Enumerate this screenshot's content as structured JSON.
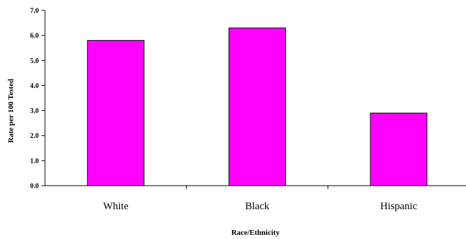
{
  "chart_data": {
    "type": "bar",
    "categories": [
      "White",
      "Black",
      "Hispanic"
    ],
    "values": [
      5.8,
      6.3,
      2.9
    ],
    "title": "",
    "xlabel": "Race/Ethnicity",
    "ylabel": "Rate per 100 Tested",
    "ylim": [
      0,
      7
    ],
    "yticks": [
      "0.0",
      "1.0",
      "2.0",
      "3.0",
      "4.0",
      "5.0",
      "6.0",
      "7.0"
    ],
    "grid": false,
    "legend": "none",
    "bar_color": "#FF00FF"
  }
}
